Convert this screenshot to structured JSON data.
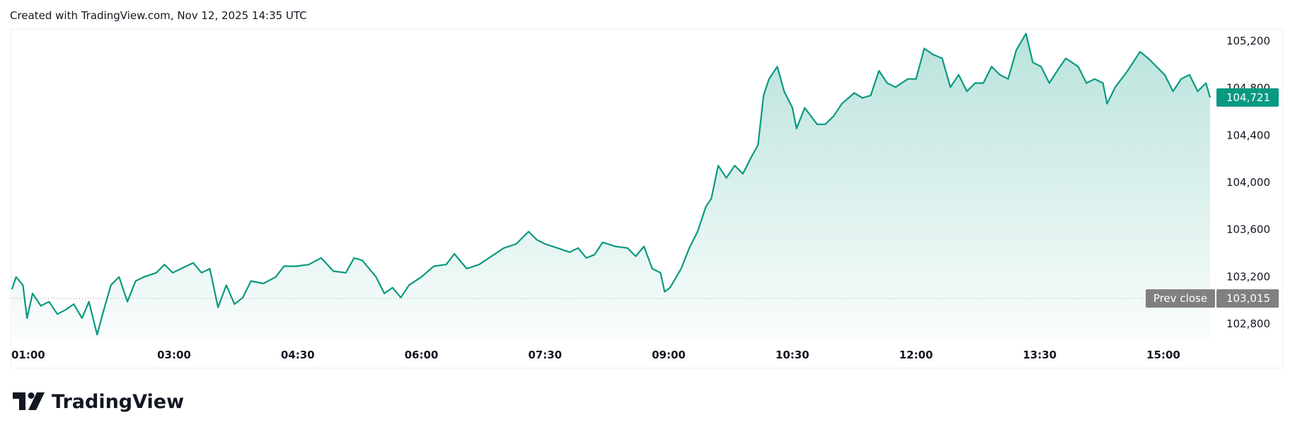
{
  "header": {
    "created_text": "Created with TradingView.com, Nov 12, 2025 14:35 UTC"
  },
  "logo": {
    "text": "TradingView"
  },
  "colors": {
    "line": "#089981",
    "last_price_bg": "#089981",
    "prev_close_bg": "#808080",
    "axis_text": "#131722"
  },
  "chart_data": {
    "type": "area",
    "title": "",
    "xlabel": "",
    "ylabel": "",
    "grid": false,
    "x_ticks": [
      "01:00",
      "03:00",
      "04:30",
      "06:00",
      "07:30",
      "09:00",
      "10:30",
      "12:00",
      "13:30",
      "15:00"
    ],
    "y_ticks": [
      102800,
      103200,
      103600,
      104000,
      104400,
      104800,
      105200
    ],
    "y_tick_labels": [
      "102,800",
      "103,200",
      "103,600",
      "104,000",
      "104,400",
      "104,800",
      "105,200"
    ],
    "ylim": [
      102620,
      105320
    ],
    "xlim": [
      "01:00",
      "15:48"
    ],
    "last_price": {
      "value": 104721,
      "label": "104,721"
    },
    "prev_close": {
      "value": 103015,
      "label": "103,015",
      "title": "Prev close"
    },
    "series": [
      {
        "x": [
          "01:02",
          "01:05",
          "01:10",
          "01:13",
          "01:17",
          "01:23",
          "01:29",
          "01:35",
          "01:41",
          "01:47",
          "01:53",
          "01:58",
          "02:04",
          "02:08",
          "02:14",
          "02:20",
          "02:26",
          "02:32",
          "02:38",
          "02:47",
          "02:53",
          "02:59",
          "03:05",
          "03:14",
          "03:20",
          "03:26",
          "03:32",
          "03:38",
          "03:44",
          "03:50",
          "03:56",
          "04:05",
          "04:14",
          "04:20",
          "04:29",
          "04:38",
          "04:47",
          "04:56",
          "05:05",
          "05:11",
          "05:17",
          "05:27",
          "05:33",
          "05:39",
          "05:45",
          "05:51",
          "06:00",
          "06:09",
          "06:18",
          "06:24",
          "06:33",
          "06:42",
          "06:51",
          "07:00",
          "07:09",
          "07:18",
          "07:24",
          "07:30",
          "07:39",
          "07:48",
          "07:54",
          "08:00",
          "08:06",
          "08:12",
          "08:21",
          "08:30",
          "08:36",
          "08:42",
          "08:48",
          "08:54",
          "08:57",
          "09:01",
          "09:09",
          "09:15",
          "09:21",
          "09:27",
          "09:31",
          "09:36",
          "09:42",
          "09:48",
          "09:54",
          "10:00",
          "10:05",
          "10:09",
          "10:13",
          "10:19",
          "10:24",
          "10:30",
          "10:33",
          "10:39",
          "10:48",
          "10:54",
          "11:00",
          "11:06",
          "11:15",
          "11:21",
          "11:27",
          "11:33",
          "11:39",
          "11:45",
          "11:54",
          "12:00",
          "12:06",
          "12:12",
          "12:19",
          "12:25",
          "12:31",
          "12:37",
          "12:43",
          "12:49",
          "12:55",
          "13:01",
          "13:07",
          "13:13",
          "13:20",
          "13:25",
          "13:31",
          "13:37",
          "13:44",
          "13:49",
          "13:58",
          "14:04",
          "14:10",
          "14:16",
          "14:19",
          "14:25",
          "14:34",
          "14:43",
          "14:49",
          "14:55",
          "15:01",
          "15:07",
          "15:13",
          "15:19",
          "15:25",
          "15:31",
          "15:34"
        ],
        "values": [
          103093,
          103198,
          103128,
          102848,
          103058,
          102953,
          102988,
          102883,
          102918,
          102967,
          102848,
          102988,
          102708,
          102883,
          103128,
          103198,
          102988,
          103163,
          103198,
          103233,
          103303,
          103233,
          103268,
          103317,
          103233,
          103268,
          102939,
          103128,
          102967,
          103023,
          103163,
          103142,
          103198,
          103289,
          103289,
          103303,
          103359,
          103247,
          103233,
          103359,
          103338,
          103198,
          103058,
          103107,
          103023,
          103128,
          103198,
          103289,
          103303,
          103394,
          103268,
          103303,
          103373,
          103443,
          103478,
          103583,
          103513,
          103478,
          103443,
          103408,
          103443,
          103359,
          103387,
          103492,
          103457,
          103443,
          103373,
          103457,
          103268,
          103233,
          103072,
          103107,
          103268,
          103443,
          103583,
          103793,
          103863,
          104143,
          104038,
          104143,
          104073,
          104213,
          104318,
          104738,
          104878,
          104983,
          104773,
          104633,
          104458,
          104633,
          104493,
          104493,
          104563,
          104668,
          104759,
          104717,
          104738,
          104948,
          104843,
          104808,
          104878,
          104878,
          105137,
          105088,
          105053,
          104808,
          104913,
          104773,
          104843,
          104843,
          104983,
          104913,
          104878,
          105123,
          105263,
          105018,
          104983,
          104843,
          104969,
          105053,
          104983,
          104843,
          104878,
          104843,
          104668,
          104808,
          104948,
          105109,
          105053,
          104983,
          104913,
          104773,
          104878,
          104913,
          104773,
          104843,
          104721
        ]
      }
    ]
  }
}
